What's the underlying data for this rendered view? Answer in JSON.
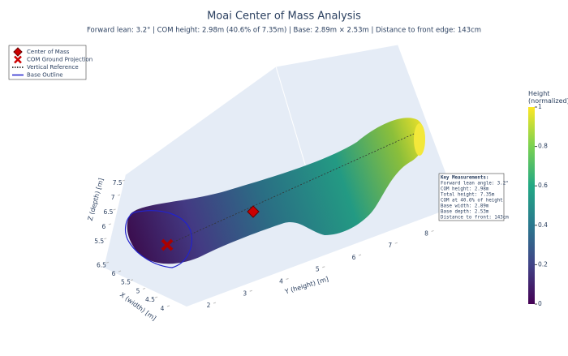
{
  "chart_data": {
    "type": "surface3d",
    "title": "Moai Center of Mass Analysis",
    "subtitle": "Forward lean: 3.2° | COM height: 2.98m (40.6% of 7.35m) | Base: 2.89m × 2.53m | Distance to front edge: 143cm",
    "legend": [
      {
        "name": "Center of Mass",
        "color": "#cc0000",
        "symbol": "diamond"
      },
      {
        "name": "COM Ground Projection",
        "color": "#cc0000",
        "symbol": "x"
      },
      {
        "name": "Vertical Reference",
        "color": "#000000",
        "symbol": "dot"
      },
      {
        "name": "Base Outline",
        "color": "#2222cc",
        "symbol": "line"
      }
    ],
    "xaxis": {
      "title": "X (width) [m]",
      "lim": [
        3.9,
        6.7
      ],
      "ticks": [
        4,
        4.5,
        5,
        5.5,
        6,
        6.5
      ]
    },
    "yaxis": {
      "title": "Y (height) [m]",
      "lim": [
        1.8,
        8.3
      ],
      "ticks": [
        2,
        3,
        4,
        5,
        6,
        7,
        8
      ]
    },
    "zaxis": {
      "title": "Z (depth) [m]",
      "lim": [
        5.3,
        7.7
      ],
      "ticks": [
        5.5,
        6,
        6.5,
        7,
        7.5
      ]
    },
    "colorbar": {
      "title": "Height (normalized)",
      "lim": [
        0,
        1
      ],
      "ticks": [
        0,
        0.2,
        0.4,
        0.6,
        0.8,
        1
      ]
    },
    "annotation": [
      "Key Measurements:",
      "Forward lean angle: 3.2°",
      "COM height: 2.98m",
      "Total height: 7.35m",
      "COM at 40.6% of height",
      "Base width: 2.89m",
      "Base depth: 2.53m",
      "Distance to front: 143cm"
    ]
  }
}
